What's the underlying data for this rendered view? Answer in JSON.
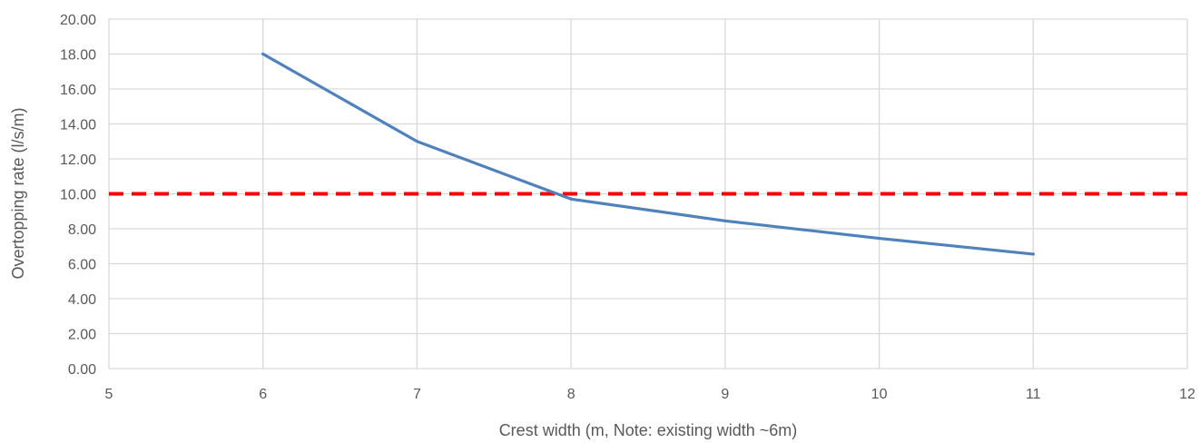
{
  "chart_data": {
    "type": "line",
    "xlabel": "Crest width (m, Note: existing width ~6m)",
    "ylabel": "Overtopping rate (l/s/m)",
    "xlim": [
      5,
      12
    ],
    "ylim": [
      0,
      20
    ],
    "x_ticks": [
      "5",
      "6",
      "7",
      "8",
      "9",
      "10",
      "11",
      "12"
    ],
    "y_ticks": [
      "0.00",
      "2.00",
      "4.00",
      "6.00",
      "8.00",
      "10.00",
      "12.00",
      "14.00",
      "16.00",
      "18.00",
      "20.00"
    ],
    "grid": true,
    "series": [
      {
        "color": "#4f81bd",
        "x": [
          6,
          7,
          8,
          9,
          10,
          11
        ],
        "y": [
          18.0,
          13.0,
          9.7,
          8.45,
          7.45,
          6.55
        ]
      }
    ],
    "reference_lines": [
      {
        "y": 10.0,
        "color": "#ff0000",
        "style": "dashed"
      }
    ]
  }
}
